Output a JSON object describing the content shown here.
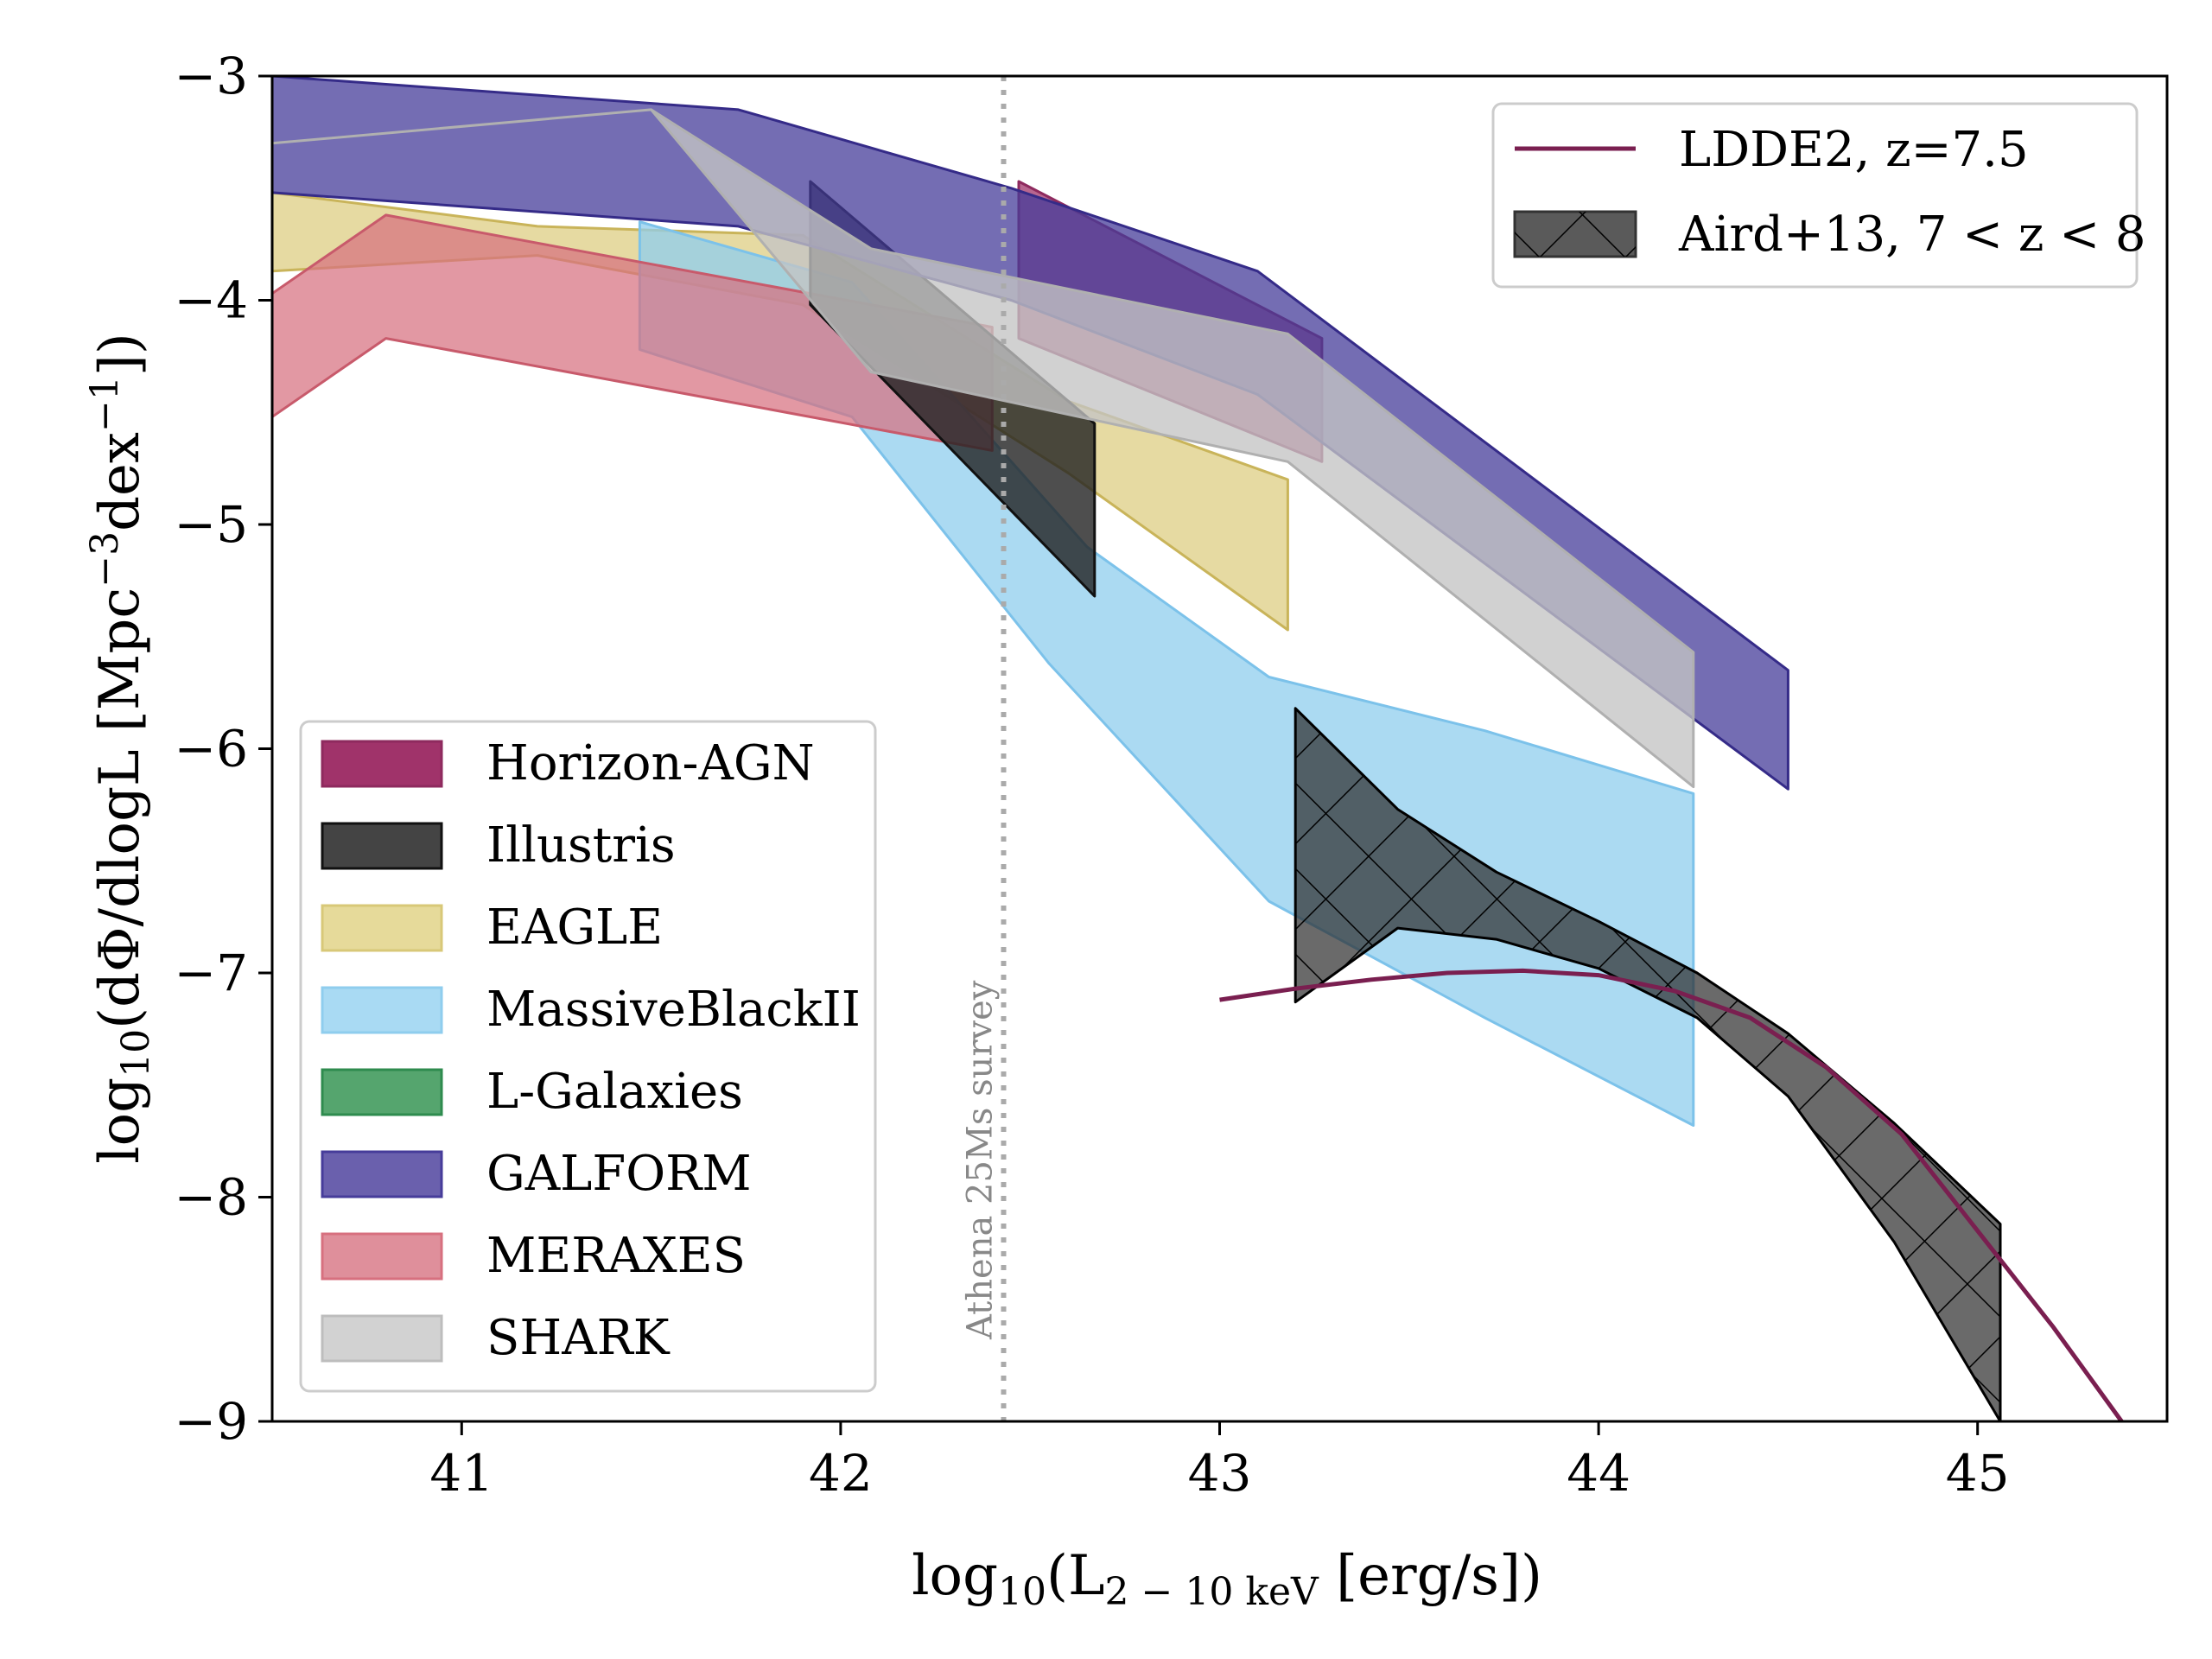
{
  "chart_data": {
    "type": "area",
    "xlabel": "log10(L2−10 keV [erg/s])",
    "xlabel_parts": {
      "main": "log",
      "sub1": "10",
      "open": "(L",
      "sub2": "2 − 10 keV",
      "rest": " [erg/s])"
    },
    "ylabel": "log10(dΦ/dlogL [Mpc−3dex−1])",
    "ylabel_parts": {
      "main": "log",
      "sub1": "10",
      "mid": "(dΦ/dlogL [Mpc",
      "sup1": "−3",
      "dex": "dex",
      "sup2": "−1",
      "close": "])"
    },
    "xlim": [
      40.5,
      45.5
    ],
    "ylim": [
      -9,
      -3
    ],
    "xticks": [
      41,
      42,
      43,
      44,
      45
    ],
    "xtick_labels": [
      "41",
      "42",
      "43",
      "44",
      "45"
    ],
    "yticks": [
      -3,
      -4,
      -5,
      -6,
      -7,
      -8,
      -9
    ],
    "ytick_labels": [
      "−3",
      "−4",
      "−5",
      "−6",
      "−7",
      "−8",
      "−9"
    ],
    "survey_line": {
      "x": 42.43,
      "label": "Athena 25Ms survey",
      "color": "#aaaaaa"
    },
    "bands": [
      {
        "name": "Horizon-AGN",
        "fill": "#a0336a",
        "edge": "#8e2a5e",
        "opacity": 0.75,
        "upper": [
          [
            42.47,
            -3.47
          ],
          [
            43.27,
            -4.17
          ]
        ],
        "lower": [
          [
            42.47,
            -4.17
          ],
          [
            43.27,
            -4.72
          ]
        ]
      },
      {
        "name": "EAGLE",
        "fill": "#dccb7a",
        "edge": "#c9b45a",
        "opacity": 0.7,
        "upper": [
          [
            40.5,
            -3.52
          ],
          [
            41.2,
            -3.67
          ],
          [
            41.9,
            -3.71
          ],
          [
            42.6,
            -4.45
          ],
          [
            43.18,
            -4.8
          ]
        ],
        "lower": [
          [
            40.5,
            -3.87
          ],
          [
            41.2,
            -3.8
          ],
          [
            41.9,
            -4.02
          ],
          [
            42.6,
            -4.77
          ],
          [
            43.18,
            -5.47
          ]
        ]
      },
      {
        "name": "MassiveBlackII",
        "fill": "#8fcdee",
        "edge": "#7cc2ea",
        "opacity": 0.75,
        "upper": [
          [
            41.47,
            -3.65
          ],
          [
            42.03,
            -3.92
          ],
          [
            42.65,
            -5.1
          ],
          [
            43.13,
            -5.68
          ],
          [
            43.7,
            -5.92
          ],
          [
            44.25,
            -6.2
          ]
        ],
        "lower": [
          [
            41.47,
            -4.22
          ],
          [
            42.03,
            -4.52
          ],
          [
            42.55,
            -5.62
          ],
          [
            43.13,
            -6.68
          ],
          [
            43.7,
            -7.2
          ],
          [
            44.25,
            -7.68
          ]
        ]
      },
      {
        "name": "MERAXES",
        "fill": "#d7707f",
        "edge": "#c85a6b",
        "opacity": 0.72,
        "upper": [
          [
            40.5,
            -3.97
          ],
          [
            40.8,
            -3.62
          ],
          [
            42.4,
            -4.12
          ]
        ],
        "lower": [
          [
            40.5,
            -4.52
          ],
          [
            40.8,
            -4.17
          ],
          [
            42.4,
            -4.67
          ]
        ]
      },
      {
        "name": "Illustris",
        "fill": "#222222",
        "edge": "#111111",
        "opacity": 0.8,
        "upper": [
          [
            41.92,
            -3.47
          ],
          [
            42.67,
            -4.55
          ]
        ],
        "lower": [
          [
            41.92,
            -4.02
          ],
          [
            42.67,
            -5.32
          ]
        ]
      },
      {
        "name": "GALFORM",
        "fill": "#463c9a",
        "edge": "#352b88",
        "opacity": 0.75,
        "upper": [
          [
            40.5,
            -3.0
          ],
          [
            41.73,
            -3.15
          ],
          [
            42.45,
            -3.5
          ],
          [
            43.1,
            -3.87
          ],
          [
            44.5,
            -5.65
          ]
        ],
        "lower": [
          [
            40.5,
            -3.52
          ],
          [
            41.73,
            -3.67
          ],
          [
            42.45,
            -4.0
          ],
          [
            43.1,
            -4.42
          ],
          [
            44.5,
            -6.18
          ]
        ]
      },
      {
        "name": "SHARK",
        "fill": "#c4c4c4",
        "edge": "#b0b0b0",
        "opacity": 0.78,
        "upper": [
          [
            40.5,
            -3.3
          ],
          [
            41.5,
            -3.15
          ],
          [
            42.08,
            -3.77
          ],
          [
            43.18,
            -4.15
          ],
          [
            44.25,
            -5.57
          ]
        ],
        "lower": [
          [
            40.5,
            -3.3
          ],
          [
            41.5,
            -3.15
          ],
          [
            42.08,
            -4.32
          ],
          [
            43.18,
            -4.72
          ],
          [
            44.25,
            -6.17
          ]
        ]
      },
      {
        "name": "L-Galaxies",
        "fill": "#2e8b4e",
        "edge": "#1f6e3a",
        "opacity": 0.8,
        "upper": [],
        "lower": []
      }
    ],
    "aird13": {
      "name": "Aird+13, 7 < z < 8",
      "fill": "#2b2b2b",
      "edge": "#000000",
      "opacity": 0.7,
      "upper": [
        [
          43.2,
          -5.82
        ],
        [
          43.47,
          -6.27
        ],
        [
          43.73,
          -6.55
        ],
        [
          44.0,
          -6.77
        ],
        [
          44.26,
          -7.0
        ],
        [
          44.5,
          -7.27
        ],
        [
          44.78,
          -7.67
        ],
        [
          45.06,
          -8.12
        ]
      ],
      "lower": [
        [
          43.2,
          -7.13
        ],
        [
          43.47,
          -6.8
        ],
        [
          43.73,
          -6.85
        ],
        [
          44.0,
          -6.98
        ],
        [
          44.26,
          -7.2
        ],
        [
          44.5,
          -7.55
        ],
        [
          44.78,
          -8.2
        ],
        [
          45.06,
          -9.0
        ]
      ]
    },
    "ldde2": {
      "name": "LDDE2, z=7.5",
      "color": "#7a1f50",
      "points": [
        [
          43.0,
          -7.12
        ],
        [
          43.2,
          -7.07
        ],
        [
          43.4,
          -7.03
        ],
        [
          43.6,
          -7.0
        ],
        [
          43.8,
          -6.99
        ],
        [
          44.0,
          -7.01
        ],
        [
          44.2,
          -7.08
        ],
        [
          44.4,
          -7.2
        ],
        [
          44.6,
          -7.42
        ],
        [
          44.8,
          -7.72
        ],
        [
          45.0,
          -8.15
        ],
        [
          45.2,
          -8.58
        ],
        [
          45.38,
          -9.0
        ]
      ]
    },
    "legend_right": [
      {
        "label": "LDDE2, z=7.5",
        "kind": "line",
        "color": "#7a1f50"
      },
      {
        "label": "Aird+13, 7 < z < 8",
        "kind": "hatch",
        "color": "#5a5a5a"
      }
    ],
    "legend_left": [
      {
        "label": "Horizon-AGN",
        "color": "#a0336a",
        "edge": "#8e2a5e"
      },
      {
        "label": "Illustris",
        "color": "#444444",
        "edge": "#111111"
      },
      {
        "label": "EAGLE",
        "color": "#e6da9a",
        "edge": "#d8c878"
      },
      {
        "label": "MassiveBlackII",
        "color": "#a9daf3",
        "edge": "#8fcdee"
      },
      {
        "label": "L-Galaxies",
        "color": "#55a56e",
        "edge": "#2e8b4e"
      },
      {
        "label": "GALFORM",
        "color": "#6a60ad",
        "edge": "#463c9a"
      },
      {
        "label": "MERAXES",
        "color": "#df8f9b",
        "edge": "#d7707f"
      },
      {
        "label": "SHARK",
        "color": "#d2d2d2",
        "edge": "#bdbdbd"
      }
    ],
    "legend_left_placement": "lower-left",
    "legend_right_placement": "upper-right"
  }
}
